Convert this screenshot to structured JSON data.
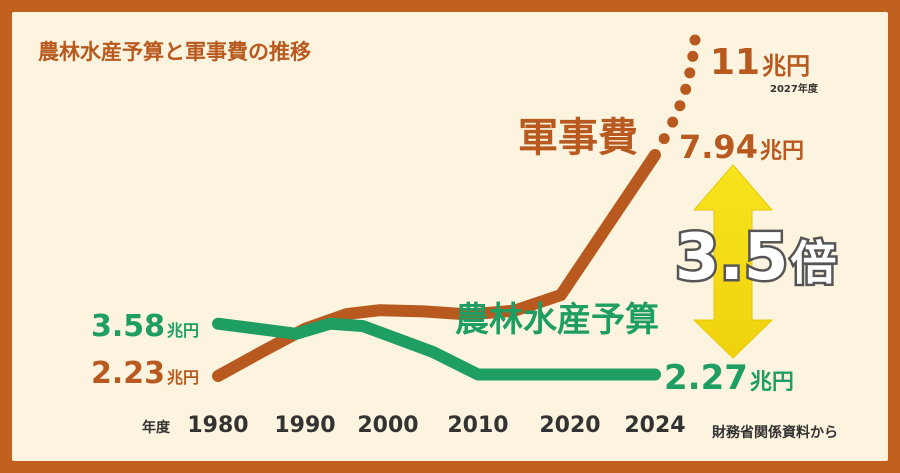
{
  "chart_data": {
    "type": "line",
    "title": "農林水産予算と軍事費の推移",
    "x_unit_label": "年度",
    "x_ticks": [
      "1980",
      "1990",
      "2000",
      "2010",
      "2020",
      "2024"
    ],
    "colors": {
      "military": "#b85a1f",
      "agriculture": "#1e9e63",
      "arrow": "#f5e01a"
    },
    "series": [
      {
        "name": "軍事費",
        "x": [
          1980,
          1985,
          1990,
          1995,
          1999,
          2004,
          2009,
          2014,
          2019,
          2024
        ],
        "y": [
          2.23,
          2.85,
          3.45,
          3.83,
          3.93,
          3.9,
          3.82,
          3.92,
          4.32,
          7.94
        ],
        "start_label_value": "2.23",
        "end_label_value": "7.94",
        "projection": {
          "x": [
            2024,
            2027
          ],
          "y": [
            7.94,
            11
          ],
          "style": "dotted"
        },
        "projection_label_value": "11",
        "projection_label_year": "2027年度"
      },
      {
        "name": "農林水産予算",
        "x": [
          1980,
          1989,
          1993,
          1997,
          2005,
          2010,
          2024
        ],
        "y": [
          3.58,
          3.32,
          3.58,
          3.52,
          2.85,
          2.27,
          2.27
        ],
        "start_label_value": "3.58",
        "end_label_value": "2.27"
      }
    ],
    "unit": "兆円",
    "ratio": {
      "value": "3.5",
      "suffix": "倍"
    },
    "source": "財務省関係資料から"
  }
}
